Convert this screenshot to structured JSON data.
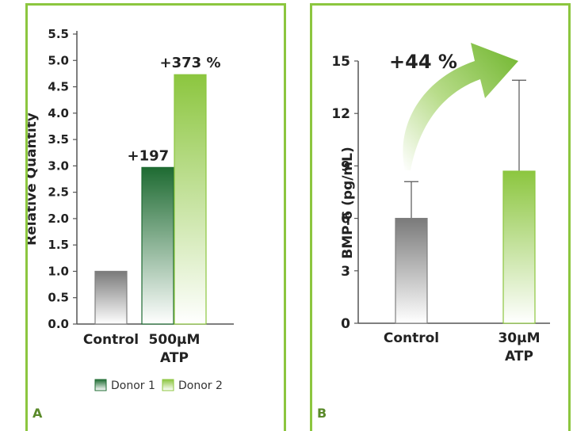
{
  "chart_data": [
    {
      "panel": "A",
      "type": "bar",
      "ylabel": "Relative Quantity",
      "ylim": [
        0,
        5.5
      ],
      "yticks": [
        "5.5",
        "5.0",
        "4.5",
        "4.0",
        "3.5",
        "3.0",
        "2.5",
        "2.0",
        "1.5",
        "1.0",
        "0.5",
        "0.0"
      ],
      "categories": [
        {
          "label": [
            "Control"
          ],
          "bars": [
            {
              "series": null,
              "value": 1.0,
              "style": "gray"
            }
          ]
        },
        {
          "label": [
            "500µM",
            "ATP"
          ],
          "bars": [
            {
              "series": "Donor 1",
              "value": 2.97,
              "style": "darkgreen",
              "annotation": "+197 %"
            },
            {
              "series": "Donor 2",
              "value": 4.73,
              "style": "lightgreen",
              "annotation": "+373 %"
            }
          ]
        }
      ],
      "legend": {
        "position": "bottom",
        "items": [
          {
            "label": "Donor 1",
            "style": "darkgreen"
          },
          {
            "label": "Donor 2",
            "style": "lightgreen"
          }
        ]
      },
      "colors": {
        "gray": "#7f7f7f",
        "darkgreen": "#1e6b32",
        "lightgreen": "#8cc63f"
      }
    },
    {
      "panel": "B",
      "type": "bar",
      "ylabel": "BMP-6 (pg/mL)",
      "ylim": [
        0,
        15
      ],
      "yticks": [
        "15",
        "12",
        "9",
        "6",
        "3",
        "0"
      ],
      "categories": [
        {
          "label": [
            "Control"
          ],
          "value": 6.0,
          "error": 2.1,
          "style": "gray"
        },
        {
          "label": [
            "30µM",
            "ATP"
          ],
          "value": 8.7,
          "error": 5.2,
          "style": "lightgreen"
        }
      ],
      "annotation": "+44 %",
      "colors": {
        "gray": "#7f7f7f",
        "lightgreen": "#8cc63f"
      }
    }
  ]
}
